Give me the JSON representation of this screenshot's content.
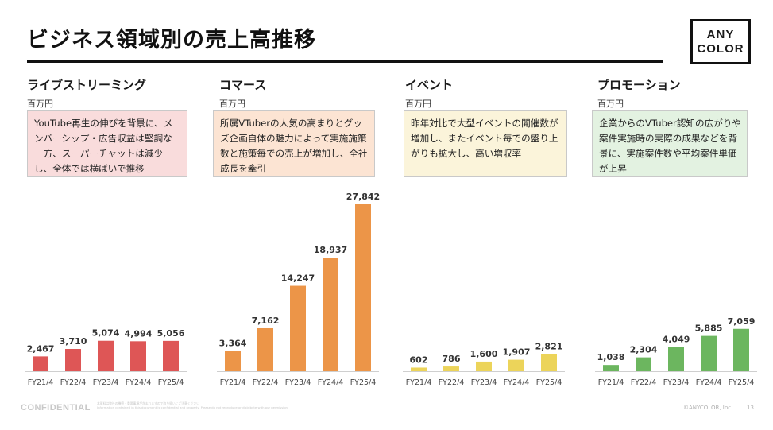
{
  "slide": {
    "title": "ビジネス領域別の売上高推移",
    "logo_line1": "ANY",
    "logo_line2": "COLOR"
  },
  "footer": {
    "confidential": "CONFIDENTIAL",
    "disclaimer_line1": "本資料は弊社の機密・重要事項が含まれますので取り扱いにご注意ください",
    "disclaimer_line2": "Information contained in this document is confidential and property. Please do not reproduce or distribute with our permission",
    "copyright": "©ANYCOLOR, Inc.",
    "page": "13"
  },
  "chart_data": [
    {
      "type": "bar",
      "title": "ライブストリーミング",
      "ylabel": "百万円",
      "description": "YouTube再生の伸びを背景に、メンバーシップ・広告収益は堅調な一方、スーパーチャットは減少し、全体では横ばいで推移",
      "description_color": "#f9dcdc",
      "color": "#de5656",
      "categories": [
        "FY21/4",
        "FY22/4",
        "FY23/4",
        "FY24/4",
        "FY25/4"
      ],
      "values": [
        2467,
        3710,
        5074,
        4994,
        5056
      ],
      "labels": [
        "2,467",
        "3,710",
        "5,074",
        "4,994",
        "5,056"
      ]
    },
    {
      "type": "bar",
      "title": "コマース",
      "ylabel": "百万円",
      "description": "所属VTuberの人気の高まりとグッズ企画自体の魅力によって実施施策数と施策毎での売上が増加し、全社成長を牽引",
      "description_color": "#fce4d3",
      "color": "#ec9548",
      "categories": [
        "FY21/4",
        "FY22/4",
        "FY23/4",
        "FY24/4",
        "FY25/4"
      ],
      "values": [
        3364,
        7162,
        14247,
        18937,
        27842
      ],
      "labels": [
        "3,364",
        "7,162",
        "14,247",
        "18,937",
        "27,842"
      ]
    },
    {
      "type": "bar",
      "title": "イベント",
      "ylabel": "百万円",
      "description": "昨年対比で大型イベントの開催数が増加し、またイベント毎での盛り上がりも拡大し、高い増収率",
      "description_color": "#fbf4da",
      "color": "#ecd45a",
      "categories": [
        "FY21/4",
        "FY22/4",
        "FY23/4",
        "FY24/4",
        "FY25/4"
      ],
      "values": [
        602,
        786,
        1600,
        1907,
        2821
      ],
      "labels": [
        "602",
        "786",
        "1,600",
        "1,907",
        "2,821"
      ]
    },
    {
      "type": "bar",
      "title": "プロモーション",
      "ylabel": "百万円",
      "description": "企業からのVTuber認知の広がりや案件実施時の実際の成果などを背景に、実施案件数や平均案件単価が上昇",
      "description_color": "#e3f2e1",
      "color": "#6cb65f",
      "categories": [
        "FY21/4",
        "FY22/4",
        "FY23/4",
        "FY24/4",
        "FY25/4"
      ],
      "values": [
        1038,
        2304,
        4049,
        5885,
        7059
      ],
      "labels": [
        "1,038",
        "2,304",
        "4,049",
        "5,885",
        "7,059"
      ]
    }
  ]
}
